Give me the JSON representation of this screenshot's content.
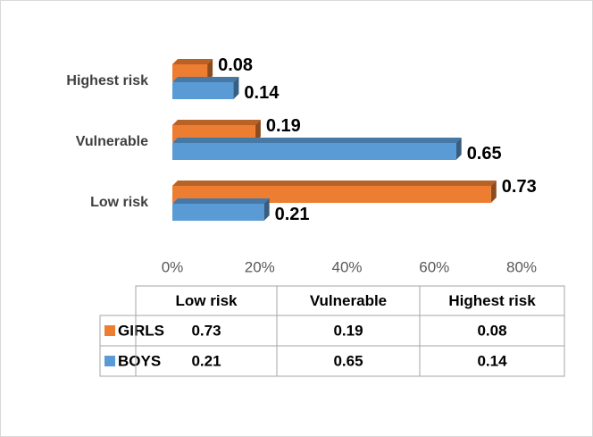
{
  "chart_data": {
    "type": "bar",
    "orientation": "horizontal",
    "categories": [
      "Low risk",
      "Vulnerable",
      "Highest risk"
    ],
    "series": [
      {
        "name": "GIRLS",
        "color": "#ED7D31",
        "values": [
          0.73,
          0.19,
          0.08
        ]
      },
      {
        "name": "BOYS",
        "color": "#5B9BD5",
        "values": [
          0.21,
          0.65,
          0.14
        ]
      }
    ],
    "xlim": [
      0,
      0.8
    ],
    "xticks": [
      {
        "value": 0,
        "label": "0%"
      },
      {
        "value": 0.2,
        "label": "20%"
      },
      {
        "value": 0.4,
        "label": "40%"
      },
      {
        "value": 0.6,
        "label": "60%"
      },
      {
        "value": 0.8,
        "label": "80%"
      }
    ],
    "data_table": true
  }
}
